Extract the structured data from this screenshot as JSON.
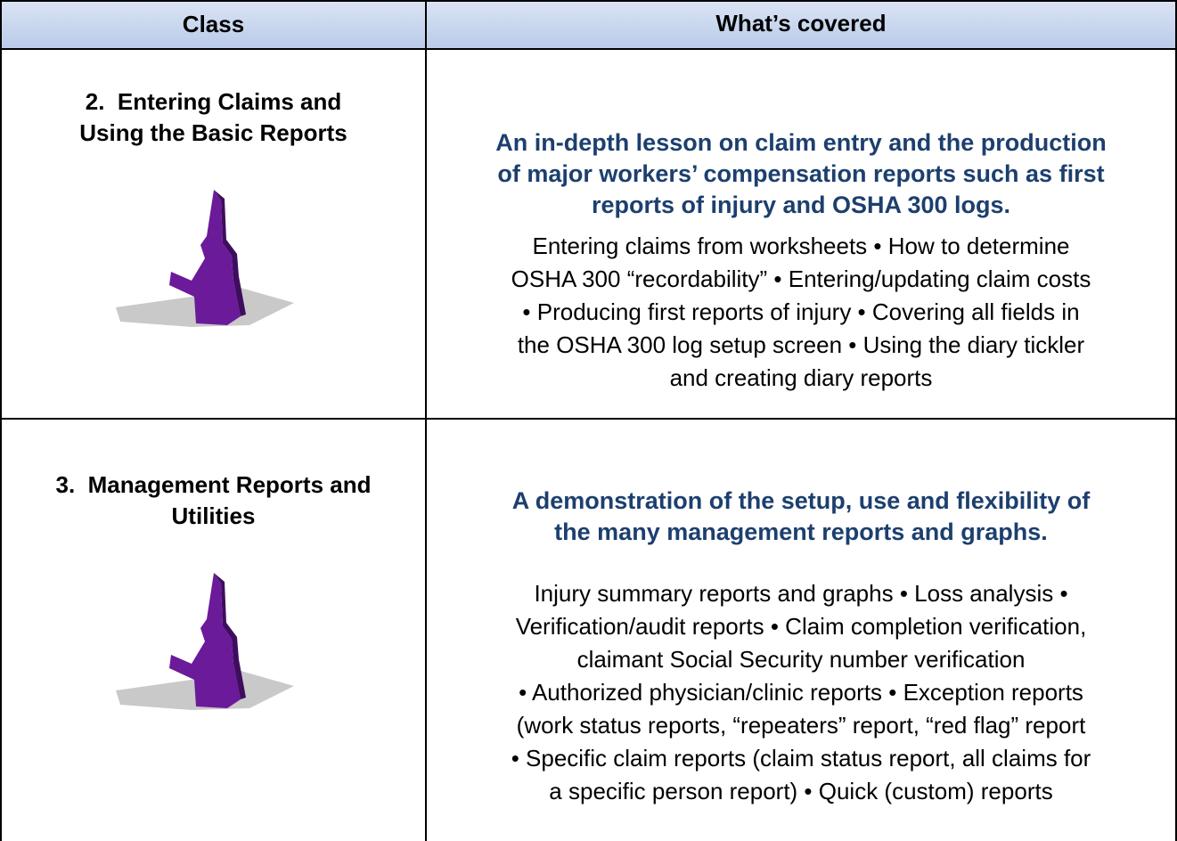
{
  "header": {
    "columns": [
      "Class",
      "What’s covered"
    ]
  },
  "rows": [
    {
      "class_lines": [
        "2.  Entering Claims and",
        "Using the Basic Reports"
      ],
      "summary_lines": [
        "An in-depth lesson on claim entry and the production",
        "of major workers’ compensation reports such as first",
        "reports of injury and OSHA 300 logs."
      ],
      "detail_lines": [
        "Entering claims from worksheets • How to determine",
        "OSHA 300 “recordability” • Entering/updating claim costs",
        "• Producing first reports of injury • Covering all fields in",
        "the OSHA 300 log setup screen • Using the diary tickler",
        "and creating diary reports"
      ]
    },
    {
      "class_lines": [
        "3.  Management Reports and",
        "Utilities"
      ],
      "summary_lines": [
        "A demonstration of the setup, use and flexibility of",
        "the many management reports and graphs."
      ],
      "detail_lines": [
        "Injury summary reports and graphs • Loss analysis •",
        "Verification/audit reports • Claim completion verification,",
        "claimant Social Security number verification",
        "• Authorized physician/clinic reports • Exception reports",
        "(work status reports, “repeaters” report, “red flag” report",
        "• Specific claim reports (claim status report, all claims for",
        "a specific person report) • Quick (custom) reports"
      ]
    }
  ]
}
